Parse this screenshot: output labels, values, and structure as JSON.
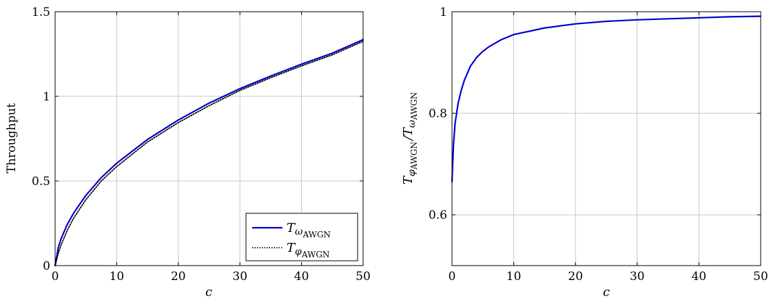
{
  "chart_data": [
    {
      "type": "line",
      "xlabel": "c",
      "ylabel": "Throughput",
      "xlim": [
        0,
        50
      ],
      "ylim": [
        0,
        1.5
      ],
      "xticks": [
        "0",
        "10",
        "20",
        "30",
        "40",
        "50"
      ],
      "yticks": [
        "0",
        "0.5",
        "1",
        "1.5"
      ],
      "grid": true,
      "legend": "bottom-right",
      "series": [
        {
          "name": "T_ω_AWGN",
          "legend_main": "T",
          "legend_sym": "ω",
          "legend_sub": "AWGN",
          "color": "#0000cc",
          "style": "solid",
          "x": [
            0,
            0.5,
            1,
            2,
            3,
            5,
            7.5,
            10,
            15,
            20,
            25,
            30,
            35,
            40,
            45,
            50
          ],
          "y": [
            0,
            0.105,
            0.162,
            0.245,
            0.31,
            0.415,
            0.52,
            0.605,
            0.745,
            0.86,
            0.96,
            1.045,
            1.12,
            1.19,
            1.255,
            1.335
          ]
        },
        {
          "name": "T_φ_AWGN",
          "legend_main": "T",
          "legend_sym": "φ",
          "legend_sub": "AWGN",
          "color": "#000000",
          "style": "dotted",
          "x": [
            0,
            0.5,
            1,
            2,
            3,
            5,
            7.5,
            10,
            15,
            20,
            25,
            30,
            35,
            40,
            45,
            50
          ],
          "y": [
            0,
            0.07,
            0.125,
            0.21,
            0.28,
            0.39,
            0.5,
            0.585,
            0.73,
            0.845,
            0.945,
            1.035,
            1.11,
            1.18,
            1.245,
            1.325
          ]
        }
      ]
    },
    {
      "type": "line",
      "xlabel": "c",
      "ylabel_main": "T",
      "ylabel_num_sym": "φ",
      "ylabel_den_sym": "ω",
      "ylabel_sub": "AWGN",
      "xlim": [
        0,
        50
      ],
      "ylim": [
        0.5,
        1
      ],
      "xticks": [
        "0",
        "10",
        "20",
        "30",
        "40",
        "50"
      ],
      "yticks": [
        "0.6",
        "0.8",
        "1"
      ],
      "grid": true,
      "series": [
        {
          "color": "#0000cc",
          "style": "solid",
          "x": [
            0,
            0.25,
            0.5,
            1,
            1.5,
            2,
            3,
            4,
            5,
            6,
            8,
            10,
            15,
            20,
            25,
            30,
            35,
            40,
            45,
            50
          ],
          "y": [
            0.665,
            0.74,
            0.78,
            0.82,
            0.845,
            0.865,
            0.893,
            0.91,
            0.922,
            0.931,
            0.945,
            0.955,
            0.968,
            0.976,
            0.981,
            0.984,
            0.986,
            0.988,
            0.99,
            0.991
          ]
        }
      ]
    }
  ]
}
